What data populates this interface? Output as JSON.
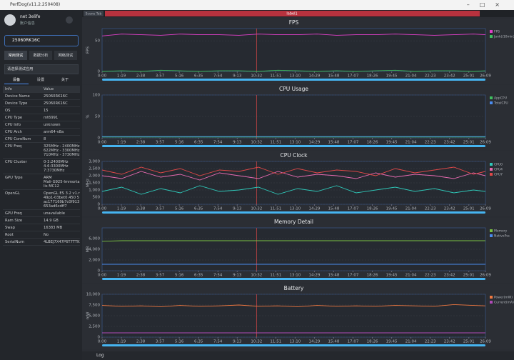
{
  "window": {
    "title": "PerfDog(v11.2.250408)"
  },
  "sidebar": {
    "user": "net 3elife",
    "account": "账户信息",
    "device": "25060RK16C",
    "tabs": [
      "常用测试",
      "数据分析",
      "网络测试"
    ],
    "app_select": "请选择测试应用",
    "subtabs": [
      "设备",
      "设置",
      "关于"
    ],
    "info_header": [
      "Info",
      "Value"
    ],
    "info_rows": [
      [
        "Device Name",
        "25060RK16C"
      ],
      [
        "Device Type",
        "25060RK16C"
      ],
      [
        "OS",
        "15"
      ],
      [
        "CPU Type",
        "mt6991"
      ],
      [
        "CPU Info",
        "unknown"
      ],
      [
        "CPU Arch",
        "arm64-v8a"
      ],
      [
        "CPU CoreNum",
        "8"
      ],
      [
        "CPU Freq",
        "325MHz - 2400MHz\n622MHz - 3300MHz\n710MHz - 3730MHz"
      ],
      [
        "CPU Cluster",
        "0-3:2400MHz\n4-6:3300MHz\n7:3730MHz"
      ],
      [
        "GPU Type",
        "ARM\nMali-G925-Immortalis MC12"
      ],
      [
        "OpenGL",
        "OpenGL ES 3.2 v1.r49p1-03bet0.450 5ac177169b7c0f913653ad6cdff7"
      ],
      [
        "GPU Freq",
        "unavailable"
      ],
      [
        "Ram Size",
        "14.9 GB"
      ],
      [
        "Swap",
        "16383 MB"
      ],
      [
        "Root",
        "No"
      ],
      [
        "SerialNum",
        "4LBEJ7X47P6T7TTK"
      ]
    ]
  },
  "tabs": [
    "Scene Tab",
    "label1"
  ],
  "time_axis": {
    "xlim": [
      0,
      1569
    ],
    "xticks": [
      {
        "value": 0,
        "label": "0:00"
      },
      {
        "value": 79,
        "label": "1:19"
      },
      {
        "value": 158,
        "label": "2:38"
      },
      {
        "value": 237,
        "label": "3:57"
      },
      {
        "value": 316,
        "label": "5:16"
      },
      {
        "value": 395,
        "label": "6:35"
      },
      {
        "value": 474,
        "label": "7:54"
      },
      {
        "value": 553,
        "label": "9:13"
      },
      {
        "value": 632,
        "label": "10:32"
      },
      {
        "value": 711,
        "label": "11:51"
      },
      {
        "value": 790,
        "label": "13:10"
      },
      {
        "value": 869,
        "label": "14:29"
      },
      {
        "value": 948,
        "label": "15:48"
      },
      {
        "value": 1027,
        "label": "17:07"
      },
      {
        "value": 1106,
        "label": "18:26"
      },
      {
        "value": 1185,
        "label": "19:45"
      },
      {
        "value": 1264,
        "label": "21:04"
      },
      {
        "value": 1343,
        "label": "22:23"
      },
      {
        "value": 1422,
        "label": "23:42"
      },
      {
        "value": 1501,
        "label": "25:01"
      },
      {
        "value": 1569,
        "label": "26:09"
      }
    ],
    "x": [
      0,
      80,
      160,
      240,
      320,
      400,
      480,
      560,
      640,
      720,
      800,
      880,
      960,
      1040,
      1120,
      1200,
      1280,
      1360,
      1440,
      1520,
      1569
    ],
    "marker": 632
  },
  "charts": [
    {
      "title": "FPS",
      "ylabel": "FPS",
      "ylim": [
        0,
        70
      ],
      "yticks": [
        0,
        50
      ],
      "series": [
        {
          "name": "FPS",
          "color": "#e040c8",
          "values": [
            58,
            61,
            60,
            59,
            61,
            60,
            60,
            59,
            61,
            60,
            60,
            61,
            59,
            60,
            60,
            61,
            60,
            59,
            60,
            61,
            60
          ]
        },
        {
          "name": "Jank(/10min)",
          "color": "#3fbf5f",
          "values": [
            0,
            1,
            0,
            2,
            1,
            0,
            1,
            1,
            0,
            2,
            1,
            0,
            1,
            0,
            1,
            2,
            0,
            1,
            1,
            0,
            1
          ]
        }
      ]
    },
    {
      "title": "CPU Usage",
      "ylabel": "%",
      "ylim": [
        0,
        100
      ],
      "yticks": [
        0,
        50,
        100
      ],
      "series": [
        {
          "name": "AppCPU",
          "color": "#3fbf5f",
          "values": [
            2,
            2,
            2,
            2,
            2,
            2,
            2,
            2,
            2,
            2,
            2,
            2,
            2,
            2,
            2,
            2,
            2,
            2,
            2,
            2,
            2
          ]
        },
        {
          "name": "TotalCPU",
          "color": "#4a8cf0",
          "values": [
            3,
            3,
            3,
            3,
            3,
            3,
            3,
            3,
            3,
            3,
            3,
            3,
            3,
            3,
            3,
            3,
            3,
            3,
            3,
            3,
            3
          ]
        }
      ]
    },
    {
      "title": "CPU Clock",
      "ylabel": "MHz",
      "ylim": [
        0,
        3000
      ],
      "yticks": [
        0,
        {
          "value": 500,
          "label": "500"
        },
        {
          "value": 1000,
          "label": "1,000"
        },
        {
          "value": 1500,
          "label": "1,500"
        },
        {
          "value": 2000,
          "label": "2,000"
        },
        {
          "value": 2500,
          "label": "2,500"
        },
        {
          "value": 3000,
          "label": "3,000"
        }
      ],
      "series": [
        {
          "name": "CPU0",
          "color": "#2fc7b8",
          "values": [
            900,
            1200,
            700,
            1100,
            800,
            1300,
            900,
            1000,
            1200,
            700,
            1100,
            900,
            1300,
            800,
            1000,
            1200,
            900,
            1100,
            800,
            1000,
            900
          ]
        },
        {
          "name": "CPU4",
          "color": "#e76ab0",
          "values": [
            2000,
            1800,
            2300,
            1900,
            2100,
            1700,
            2200,
            2000,
            1800,
            2300,
            1900,
            2100,
            2000,
            1800,
            2200,
            1900,
            2100,
            2000,
            1800,
            2200,
            2000
          ]
        },
        {
          "name": "CPU7",
          "color": "#e04848",
          "values": [
            2400,
            2100,
            2600,
            2200,
            2500,
            2000,
            2400,
            2300,
            2600,
            2100,
            2500,
            2200,
            2400,
            2300,
            2000,
            2500,
            2200,
            2400,
            2600,
            2100,
            2300
          ]
        }
      ]
    },
    {
      "title": "Memory Detail",
      "ylabel": "MB",
      "ylim": [
        0,
        8000
      ],
      "yticks": [
        0,
        {
          "value": 2000,
          "label": "2,000"
        },
        {
          "value": 4000,
          "label": "4,000"
        },
        {
          "value": 6000,
          "label": "6,000"
        }
      ],
      "series": [
        {
          "name": "Memory",
          "color": "#7ac142",
          "values": [
            5500,
            5600,
            5600,
            5600,
            5600,
            5600,
            5600,
            5600,
            5600,
            5600,
            5600,
            5600,
            5600,
            5600,
            5600,
            5600,
            5600,
            5600,
            5600,
            5600,
            5600
          ]
        },
        {
          "name": "NativePss",
          "color": "#4a8cf0",
          "values": [
            1200,
            1200,
            1200,
            1200,
            1200,
            1200,
            1200,
            1200,
            1200,
            1200,
            1200,
            1200,
            1200,
            1200,
            1200,
            1200,
            1200,
            1200,
            1200,
            1200,
            1200
          ]
        }
      ]
    },
    {
      "title": "Battery",
      "ylabel": "mW",
      "ylim": [
        0,
        10000
      ],
      "yticks": [
        0,
        {
          "value": 2500,
          "label": "2,500"
        },
        {
          "value": 5000,
          "label": "5,000"
        },
        {
          "value": 7500,
          "label": "7,500"
        },
        {
          "value": 10000,
          "label": "10,000"
        }
      ],
      "series": [
        {
          "name": "Power(mW)",
          "color": "#f07840",
          "values": [
            7400,
            7200,
            7300,
            7100,
            7400,
            7200,
            7300,
            7500,
            7200,
            7300,
            7100,
            7400,
            7200,
            7300,
            7200,
            7400,
            7300,
            7200,
            7600,
            7400,
            7300
          ]
        },
        {
          "name": "Current(mA)",
          "color": "#b04ab8",
          "values": [
            1000,
            1000,
            1000,
            1000,
            1000,
            1000,
            1000,
            1000,
            1000,
            1000,
            1000,
            1000,
            1000,
            1000,
            1000,
            1000,
            1000,
            1000,
            1000,
            1000,
            1000
          ]
        }
      ]
    }
  ],
  "log": "Log"
}
